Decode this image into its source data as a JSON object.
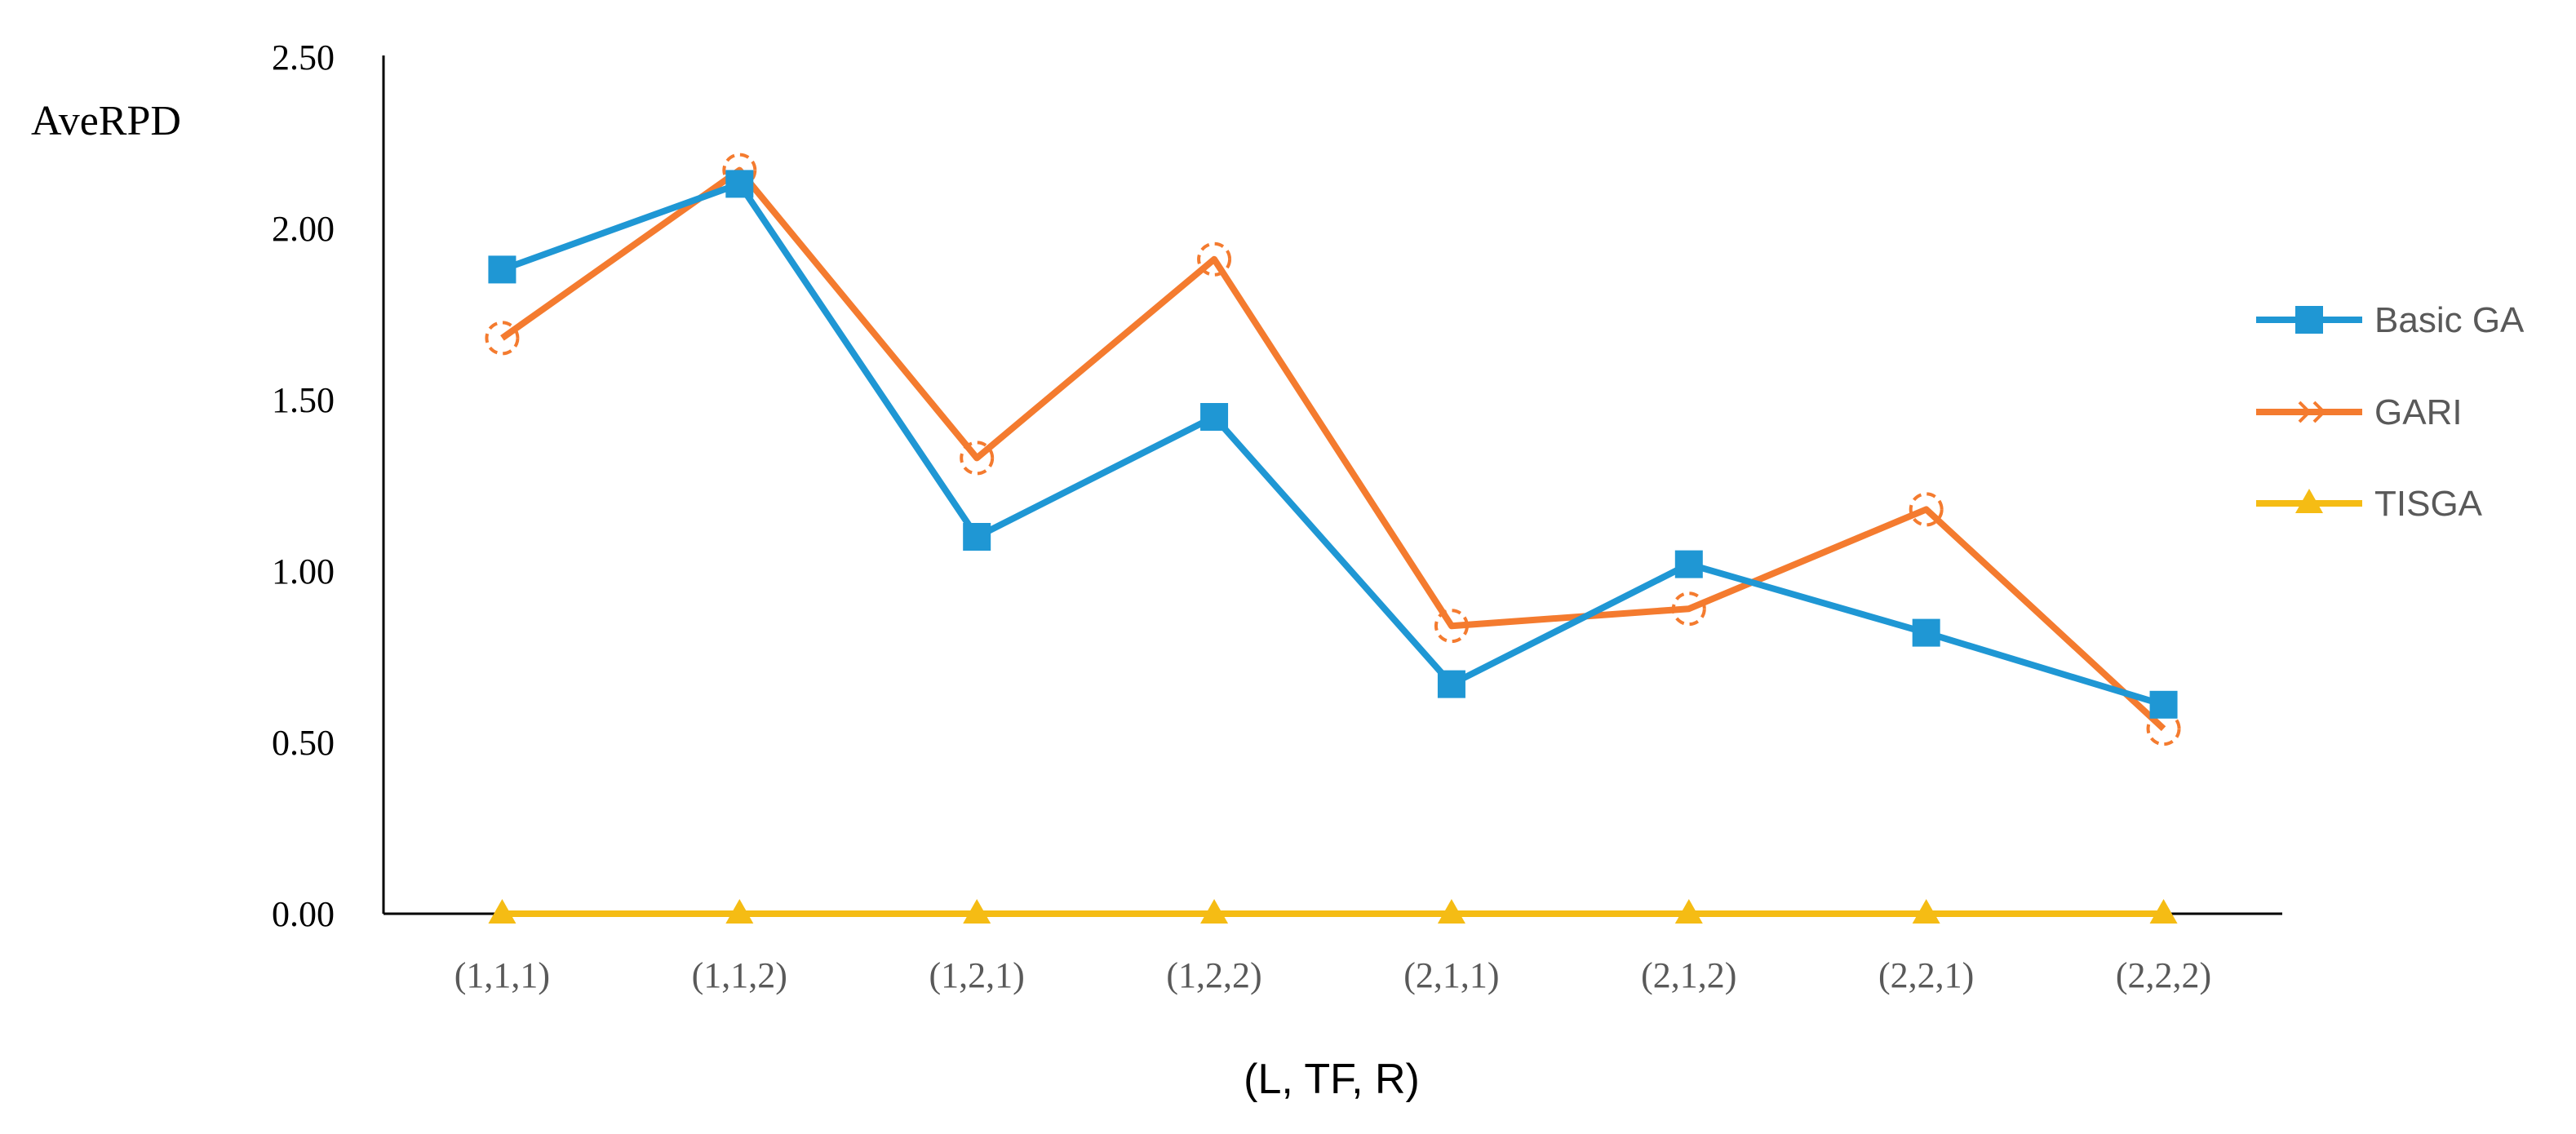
{
  "chart_data": {
    "type": "line",
    "title": "",
    "xlabel": "(L, TF, R)",
    "ylabel": "AveRPD",
    "ylim": [
      0,
      2.5
    ],
    "yticks": [
      "0.00",
      "0.50",
      "1.00",
      "1.50",
      "2.00",
      "2.50"
    ],
    "categories": [
      "(1,1,1)",
      "(1,1,2)",
      "(1,2,1)",
      "(1,2,2)",
      "(2,1,1)",
      "(2,1,2)",
      "(2,2,1)",
      "(2,2,2)"
    ],
    "grid": false,
    "legend_position": "right",
    "series": [
      {
        "name": "Basic GA",
        "color": "#1F97D4",
        "marker": "square",
        "values": [
          1.88,
          2.13,
          1.1,
          1.45,
          0.67,
          1.02,
          0.82,
          0.61
        ]
      },
      {
        "name": "GARI",
        "color": "#F47B2F",
        "marker": "dashed-circle",
        "values": [
          1.68,
          2.17,
          1.33,
          1.91,
          0.84,
          0.89,
          1.18,
          0.54
        ]
      },
      {
        "name": "TISGA",
        "color": "#F5BC14",
        "marker": "triangle",
        "values": [
          0,
          0,
          0,
          0,
          0,
          0,
          0,
          0
        ]
      }
    ]
  }
}
